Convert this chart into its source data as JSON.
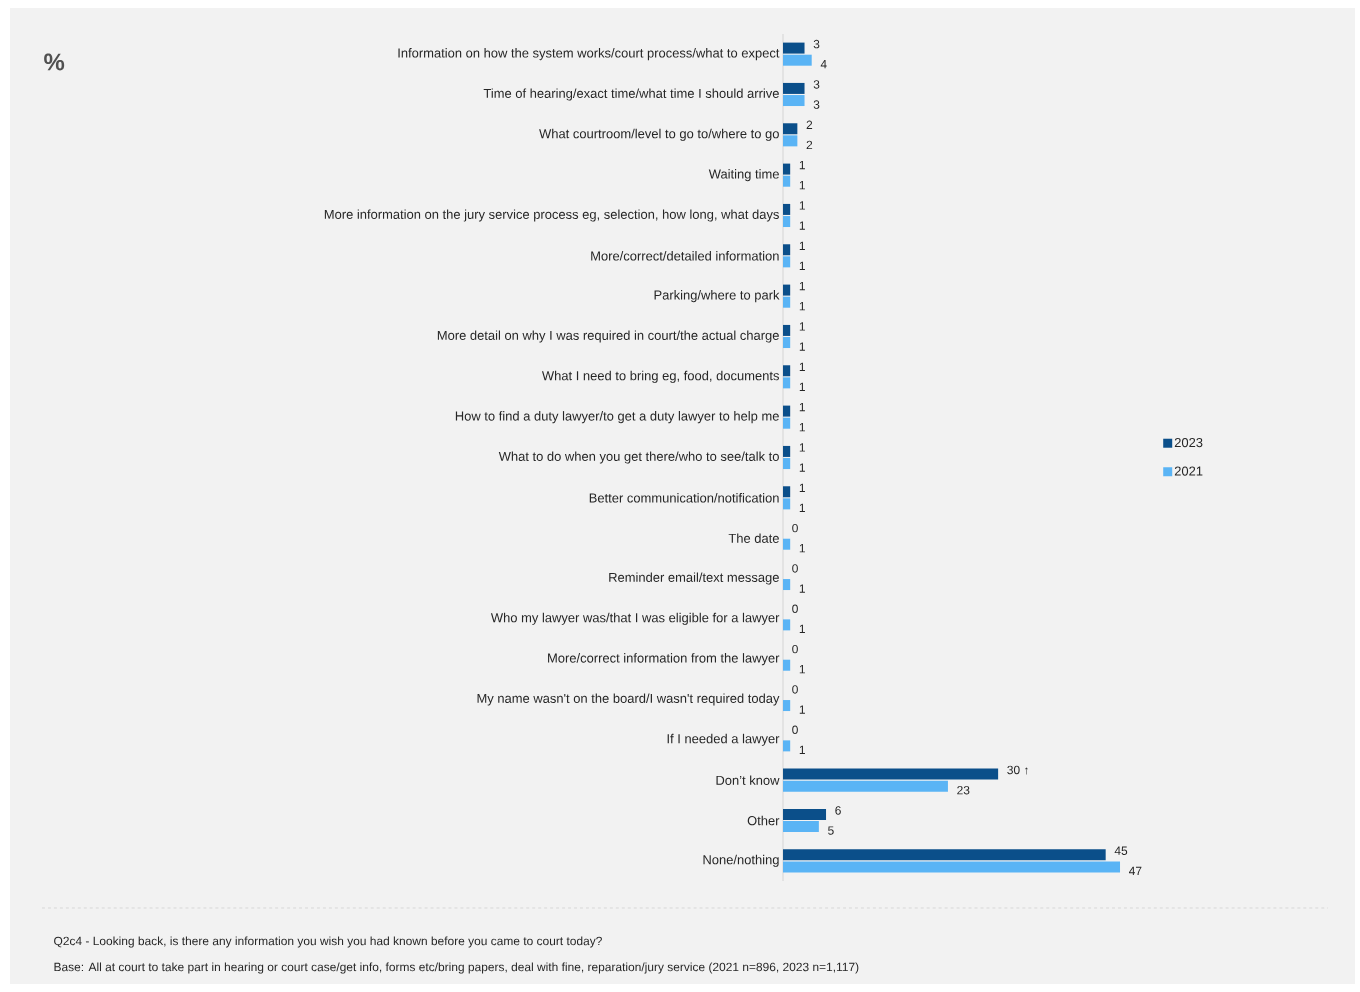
{
  "chart_data": {
    "type": "bar",
    "orientation": "horizontal",
    "title": "%",
    "categories": [
      "Information on how the system works/court process/what to expect",
      "Time of hearing/exact time/what time I should arrive",
      "What courtroom/level to go to/where to go",
      "Waiting time",
      "More information on the jury service process eg, selection, how long, what days",
      "More/correct/detailed information",
      "Parking/where to park",
      "More detail on why I was required in court/the actual charge",
      "What I need to bring eg, food, documents",
      "How to find a duty lawyer/to get a duty lawyer to help me",
      "What to do when you get there/who to see/talk to",
      "Better communication/notification",
      "The date",
      "Reminder email/text message",
      "Who my lawyer was/that I was eligible for a lawyer",
      "More/correct information from the lawyer",
      "My name wasn't on the board/I wasn't required today",
      "If I needed a lawyer",
      "Don’t know",
      "Other",
      "None/nothing"
    ],
    "series": [
      {
        "name": "2023",
        "color": "#0b4f8a",
        "values": [
          3,
          3,
          2,
          1,
          1,
          1,
          1,
          1,
          1,
          1,
          1,
          1,
          0,
          0,
          0,
          0,
          0,
          0,
          30,
          6,
          45
        ],
        "value_labels": [
          "3",
          "3",
          "2",
          "1",
          "1",
          "1",
          "1",
          "1",
          "1",
          "1",
          "1",
          "1",
          "0",
          "0",
          "0",
          "0",
          "0",
          "0",
          "30 ↑",
          "6",
          "45"
        ]
      },
      {
        "name": "2021",
        "color": "#5ab4f5",
        "values": [
          4,
          3,
          2,
          1,
          1,
          1,
          1,
          1,
          1,
          1,
          1,
          1,
          1,
          1,
          1,
          1,
          1,
          1,
          23,
          5,
          47
        ],
        "value_labels": [
          "4",
          "3",
          "2",
          "1",
          "1",
          "1",
          "1",
          "1",
          "1",
          "1",
          "1",
          "1",
          "1",
          "1",
          "1",
          "1",
          "1",
          "1",
          "23",
          "5",
          "47"
        ]
      }
    ],
    "legend": "right",
    "annotations": [
      "Q2c4 - Looking back, is there any information you wish you had known before you came to court today?",
      "Base: All at court to take part in hearing or court case/get info, forms etc/bring papers, deal with fine, reparation/jury service (2021 n=896, 2023 n=1,117)"
    ]
  }
}
